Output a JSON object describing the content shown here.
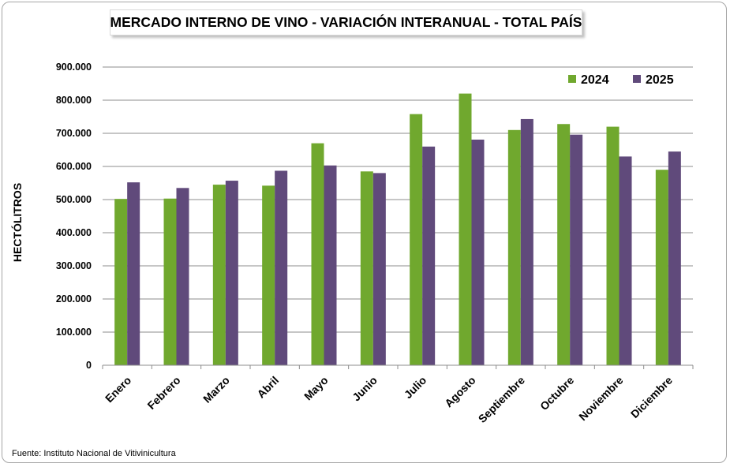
{
  "chart_data": {
    "type": "bar",
    "title": "MERCADO INTERNO DE VINO - VARIACIÓN INTERANUAL - TOTAL PAÍS",
    "ylabel": "HECTÓLITROS",
    "xlabel": "",
    "ylim": [
      0,
      900000
    ],
    "yticks": [
      0,
      100000,
      200000,
      300000,
      400000,
      500000,
      600000,
      700000,
      800000,
      900000
    ],
    "ytick_labels": [
      "0",
      "100.000",
      "200.000",
      "300.000",
      "400.000",
      "500.000",
      "600.000",
      "700.000",
      "800.000",
      "900.000"
    ],
    "grid": "horizontal",
    "legend_position": "top-right",
    "categories": [
      "Enero",
      "Febrero",
      "Marzo",
      "Abril",
      "Mayo",
      "Junio",
      "Julio",
      "Agosto",
      "Septiembre",
      "Octubre",
      "Noviembre",
      "Diciembre"
    ],
    "series": [
      {
        "name": "2024",
        "color": "#70a82e",
        "values": [
          502000,
          503000,
          545000,
          542000,
          670000,
          585000,
          758000,
          820000,
          710000,
          728000,
          720000,
          590000
        ]
      },
      {
        "name": "2025",
        "color": "#604a7b",
        "values": [
          552000,
          535000,
          557000,
          587000,
          603000,
          580000,
          660000,
          681000,
          743000,
          696000,
          630000,
          645000
        ]
      }
    ]
  },
  "source": "Fuente: Instituto Nacional de Vitivinicultura"
}
